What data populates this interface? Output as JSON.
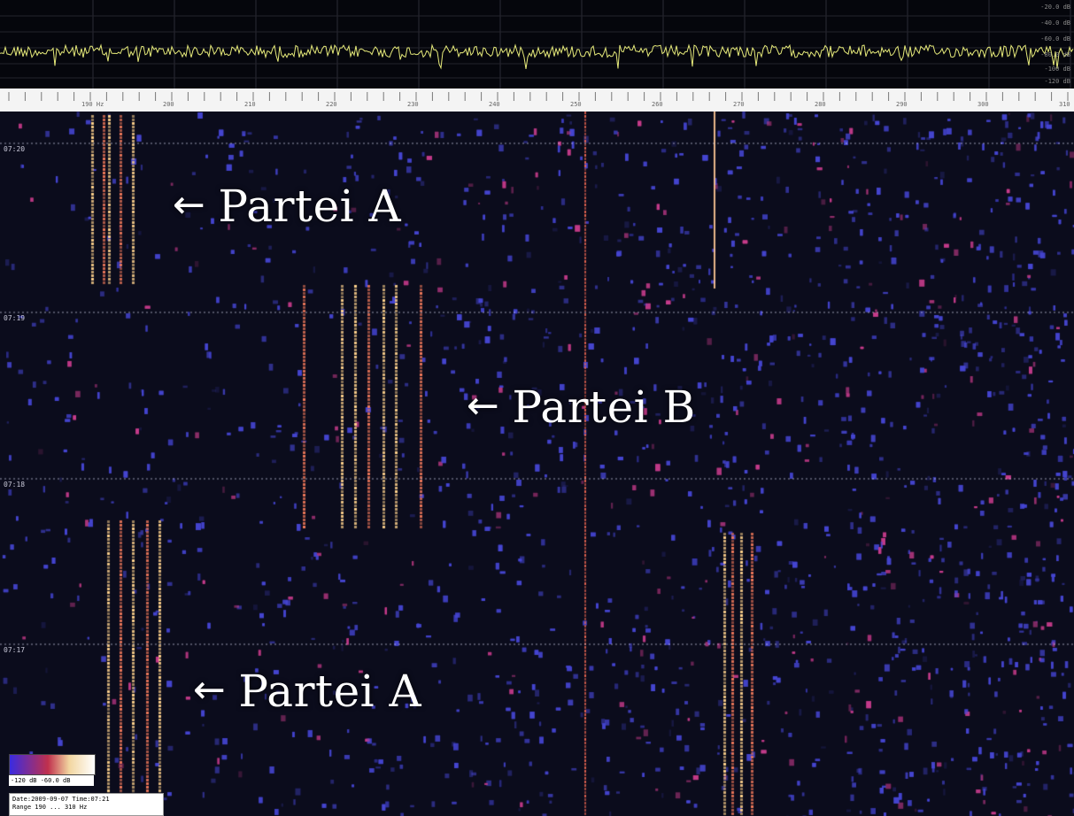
{
  "spectrum": {
    "db_labels": [
      "-20.0 dB",
      "-40.0 dB",
      "-60.0 dB",
      "-80.0 dB",
      "-100 dB",
      "-120 dB"
    ],
    "trace_color": "#e6ea7a"
  },
  "ruler": {
    "freq_labels": [
      "190 Hz",
      "200",
      "210",
      "220",
      "230",
      "240",
      "250",
      "260",
      "270",
      "280",
      "290",
      "300",
      "310"
    ]
  },
  "waterfall": {
    "time_labels": [
      "07:20",
      "07:19",
      "07:18",
      "07:17"
    ],
    "annotations": [
      {
        "text": "Partei A",
        "arrow": "←"
      },
      {
        "text": "Partei B",
        "arrow": "←"
      },
      {
        "text": "Partei A",
        "arrow": "←"
      }
    ],
    "colors": {
      "background": "#0b0c1c",
      "noise": "#3b3ec4",
      "signal": "#f0c97a",
      "signal_hot": "#ff7b4a"
    }
  },
  "legend": {
    "range_text": "-120 dB  -60.0 dB"
  },
  "info": {
    "line1": "Date:2009-09-07  Time:07:21",
    "line2": "Range 190 ... 310 Hz"
  }
}
